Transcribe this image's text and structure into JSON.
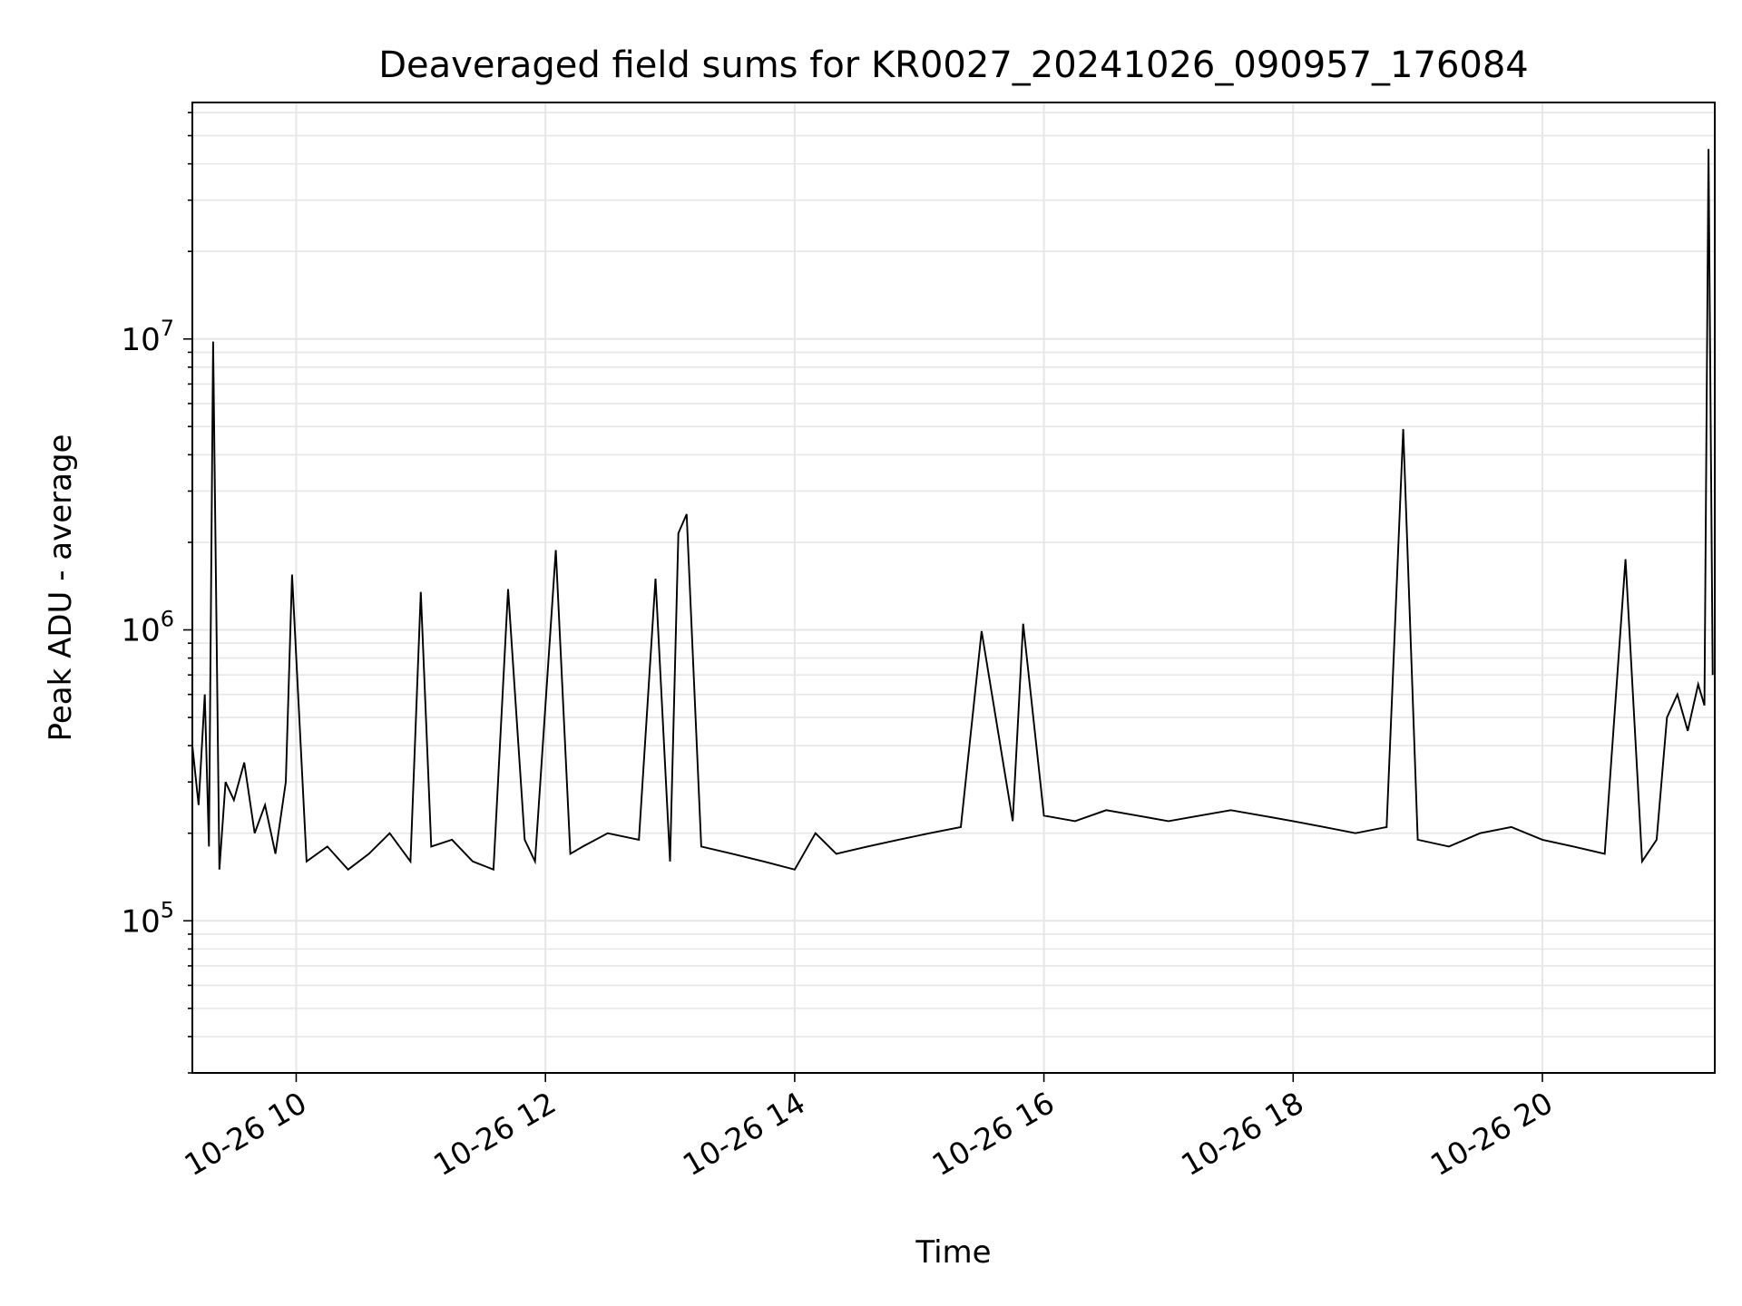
{
  "chart_data": {
    "type": "line",
    "title": "Deaveraged field sums for KR0027_20241026_090957_176084",
    "xlabel": "Time",
    "ylabel": "Peak ADU - average",
    "x_range": [
      "2024-10-26T09:10:00",
      "2024-10-26T21:23:00"
    ],
    "y_range": [
      30000,
      65000000
    ],
    "y_scale": "log",
    "grid": true,
    "line_color": "#000000",
    "x_ticks": [
      {
        "x": "2024-10-26T10:00:00",
        "label": "10-26 10"
      },
      {
        "x": "2024-10-26T12:00:00",
        "label": "10-26 12"
      },
      {
        "x": "2024-10-26T14:00:00",
        "label": "10-26 14"
      },
      {
        "x": "2024-10-26T16:00:00",
        "label": "10-26 16"
      },
      {
        "x": "2024-10-26T18:00:00",
        "label": "10-26 18"
      },
      {
        "x": "2024-10-26T20:00:00",
        "label": "10-26 20"
      }
    ],
    "y_major_ticks": [
      {
        "value": 100000,
        "base": "10",
        "exp": "5"
      },
      {
        "value": 1000000,
        "base": "10",
        "exp": "6"
      },
      {
        "value": 10000000,
        "base": "10",
        "exp": "7"
      }
    ],
    "series": [
      {
        "x": [
          "2024-10-26T09:10:00",
          "2024-10-26T09:13:00",
          "2024-10-26T09:16:00",
          "2024-10-26T09:18:00",
          "2024-10-26T09:20:00",
          "2024-10-26T09:23:00",
          "2024-10-26T09:26:00",
          "2024-10-26T09:30:00",
          "2024-10-26T09:35:00",
          "2024-10-26T09:40:00",
          "2024-10-26T09:45:00",
          "2024-10-26T09:50:00",
          "2024-10-26T09:55:00",
          "2024-10-26T09:58:00",
          "2024-10-26T10:05:00",
          "2024-10-26T10:15:00",
          "2024-10-26T10:25:00",
          "2024-10-26T10:35:00",
          "2024-10-26T10:45:00",
          "2024-10-26T10:55:00",
          "2024-10-26T11:00:00",
          "2024-10-26T11:05:00",
          "2024-10-26T11:15:00",
          "2024-10-26T11:25:00",
          "2024-10-26T11:35:00",
          "2024-10-26T11:42:00",
          "2024-10-26T11:50:00",
          "2024-10-26T11:55:00",
          "2024-10-26T12:05:00",
          "2024-10-26T12:12:00",
          "2024-10-26T12:18:00",
          "2024-10-26T12:30:00",
          "2024-10-26T12:45:00",
          "2024-10-26T12:53:00",
          "2024-10-26T13:00:00",
          "2024-10-26T13:04:00",
          "2024-10-26T13:08:00",
          "2024-10-26T13:15:00",
          "2024-10-26T13:30:00",
          "2024-10-26T13:45:00",
          "2024-10-26T14:00:00",
          "2024-10-26T14:10:00",
          "2024-10-26T14:20:00",
          "2024-10-26T14:35:00",
          "2024-10-26T14:50:00",
          "2024-10-26T15:05:00",
          "2024-10-26T15:20:00",
          "2024-10-26T15:30:00",
          "2024-10-26T15:45:00",
          "2024-10-26T15:50:00",
          "2024-10-26T16:00:00",
          "2024-10-26T16:15:00",
          "2024-10-26T16:30:00",
          "2024-10-26T16:45:00",
          "2024-10-26T17:00:00",
          "2024-10-26T17:15:00",
          "2024-10-26T17:30:00",
          "2024-10-26T17:45:00",
          "2024-10-26T18:00:00",
          "2024-10-26T18:15:00",
          "2024-10-26T18:30:00",
          "2024-10-26T18:45:00",
          "2024-10-26T18:53:00",
          "2024-10-26T19:00:00",
          "2024-10-26T19:15:00",
          "2024-10-26T19:30:00",
          "2024-10-26T19:45:00",
          "2024-10-26T20:00:00",
          "2024-10-26T20:15:00",
          "2024-10-26T20:30:00",
          "2024-10-26T20:40:00",
          "2024-10-26T20:48:00",
          "2024-10-26T20:55:00",
          "2024-10-26T21:00:00",
          "2024-10-26T21:05:00",
          "2024-10-26T21:10:00",
          "2024-10-26T21:15:00",
          "2024-10-26T21:18:00",
          "2024-10-26T21:20:00",
          "2024-10-26T21:22:00"
        ],
        "y": [
          400000,
          250000,
          600000,
          180000,
          9800000,
          150000,
          300000,
          260000,
          350000,
          200000,
          250000,
          170000,
          300000,
          1550000,
          160000,
          180000,
          150000,
          170000,
          200000,
          160000,
          1350000,
          180000,
          190000,
          160000,
          150000,
          1380000,
          190000,
          160000,
          1880000,
          170000,
          180000,
          200000,
          190000,
          1500000,
          160000,
          2150000,
          2500000,
          180000,
          170000,
          160000,
          150000,
          200000,
          170000,
          180000,
          190000,
          200000,
          210000,
          990000,
          220000,
          1050000,
          230000,
          220000,
          240000,
          230000,
          220000,
          230000,
          240000,
          230000,
          220000,
          210000,
          200000,
          210000,
          4900000,
          190000,
          180000,
          200000,
          210000,
          190000,
          180000,
          170000,
          1750000,
          160000,
          190000,
          500000,
          600000,
          450000,
          650000,
          550000,
          45000000,
          700000
        ],
        "lw": 1.2
      }
    ]
  }
}
